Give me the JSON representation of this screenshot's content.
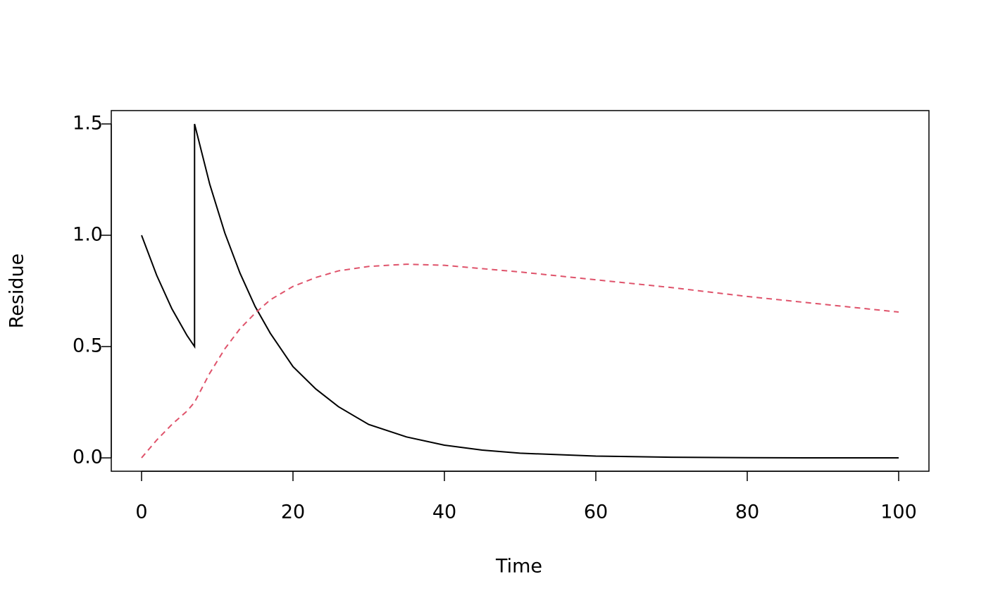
{
  "chart_data": {
    "type": "line",
    "xlabel": "Time",
    "ylabel": "Residue",
    "x": [
      0,
      2,
      4,
      6,
      7,
      7,
      9,
      11,
      13,
      15,
      17,
      20,
      23,
      26,
      30,
      35,
      40,
      45,
      50,
      60,
      70,
      80,
      90,
      100
    ],
    "series": [
      {
        "color": "#000000",
        "linestyle": "solid",
        "values": [
          1.0,
          0.82,
          0.67,
          0.55,
          0.5,
          1.5,
          1.23,
          1.01,
          0.83,
          0.68,
          0.56,
          0.41,
          0.31,
          0.23,
          0.15,
          0.094,
          0.057,
          0.035,
          0.021,
          0.008,
          0.003,
          0.001,
          0,
          0
        ]
      },
      {
        "color": "#DF536B",
        "linestyle": "dashed",
        "values": [
          0,
          0.08,
          0.15,
          0.21,
          0.25,
          0.25,
          0.38,
          0.49,
          0.58,
          0.65,
          0.71,
          0.77,
          0.81,
          0.84,
          0.86,
          0.87,
          0.865,
          0.85,
          0.835,
          0.8,
          0.765,
          0.725,
          0.69,
          0.655
        ]
      }
    ],
    "xlim": [
      -4,
      104
    ],
    "ylim": [
      -0.06,
      1.56
    ],
    "xticks": [
      0,
      20,
      40,
      60,
      80,
      100
    ],
    "yticks": [
      {
        "value": 0,
        "label": "0.0"
      },
      {
        "value": 0.5,
        "label": "0.5"
      },
      {
        "value": 1,
        "label": "1.0"
      },
      {
        "value": 1.5,
        "label": "1.5"
      }
    ],
    "grid": false
  }
}
